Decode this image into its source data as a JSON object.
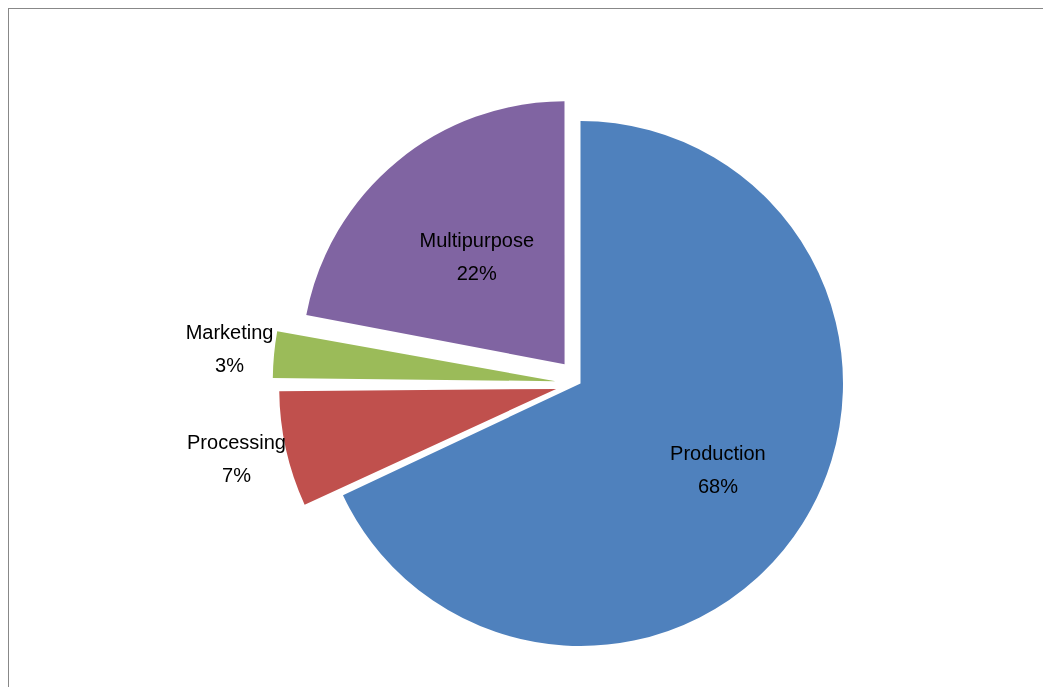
{
  "chart_data": {
    "type": "pie",
    "categories": [
      "Production",
      "Processing",
      "Marketing",
      "Multipurpose"
    ],
    "values": [
      68,
      7,
      3,
      22
    ],
    "colors": [
      "#4f81bd",
      "#c0504d",
      "#9bbb59",
      "#8064a2"
    ],
    "value_labels": [
      "68%",
      "7%",
      "3%",
      "22%"
    ],
    "legend": false
  }
}
